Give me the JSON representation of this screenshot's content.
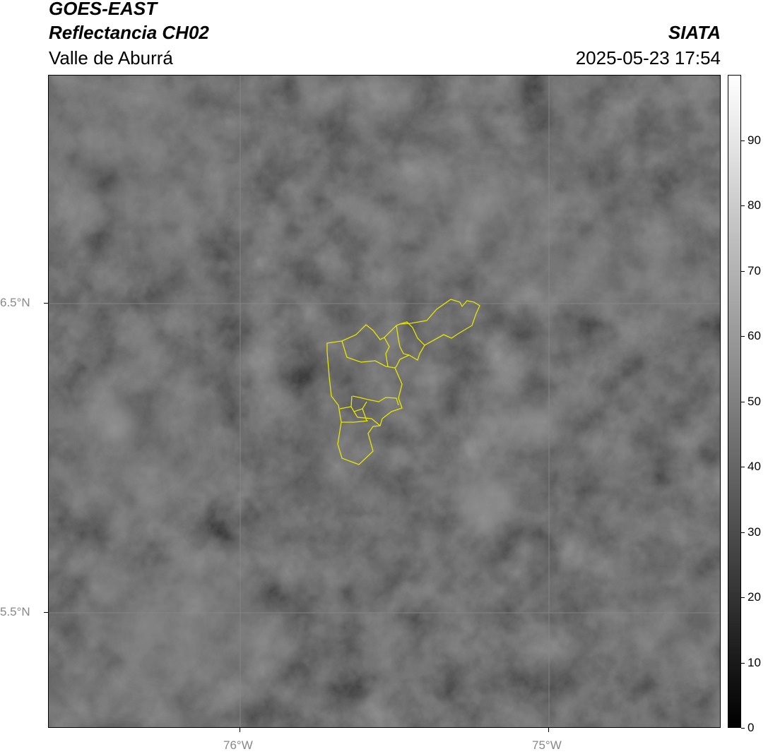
{
  "header": {
    "satellite": "GOES-EAST",
    "product": "Reflectancia CH02",
    "region": "Valle de Aburrá",
    "organization": "SIATA",
    "datetime": "2025-05-23 17:54"
  },
  "map": {
    "extent": {
      "lon": [
        -76.62,
        -74.44
      ],
      "lat": [
        5.13,
        7.24
      ]
    },
    "boundary_color": "#e6e600",
    "gridline_color": "#888888",
    "lon_ticks": [
      {
        "value": -76,
        "label": "76°W"
      },
      {
        "value": -75,
        "label": "75°W"
      }
    ],
    "lat_ticks": [
      {
        "value": 6.5,
        "label": "6.5°N"
      },
      {
        "value": 5.5,
        "label": "5.5°N"
      }
    ]
  },
  "colorbar": {
    "range": [
      0,
      100
    ],
    "colormap": "gray",
    "ticks": [
      "0",
      "10",
      "20",
      "30",
      "40",
      "50",
      "60",
      "70",
      "80",
      "90"
    ]
  }
}
